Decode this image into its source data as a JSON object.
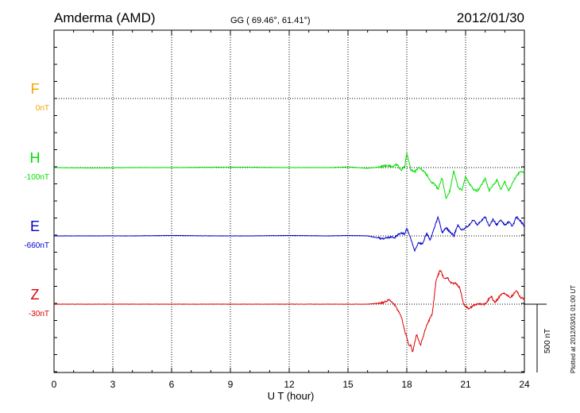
{
  "header": {
    "station": "Amderma (AMD)",
    "coords": "GG ( 69.46°,  61.41°)",
    "date": "2012/01/30"
  },
  "footer": {
    "xlabel": "U T (hour)",
    "plotted": "Plotted at 2012/03/01 01:00 UT",
    "scale": "500 nT"
  },
  "chart_data": {
    "type": "line",
    "xlabel": "U T (hour)",
    "xlim": [
      0,
      24
    ],
    "xticks": [
      "0",
      "3",
      "6",
      "9",
      "12",
      "15",
      "18",
      "21",
      "24"
    ],
    "grid": true,
    "scale_bar_nT": 500,
    "colors": {
      "F": "#f5a500",
      "H": "#00e000",
      "E": "#0000cc",
      "Z": "#dd0000"
    },
    "series": [
      {
        "name": "F",
        "baseline": "0nT",
        "x": [],
        "y": []
      },
      {
        "name": "H",
        "baseline": "-100nT",
        "x": [
          0,
          2,
          4,
          6,
          8,
          10,
          12,
          14,
          15,
          16,
          16.6,
          17,
          17.3,
          17.5,
          17.7,
          17.9,
          18.0,
          18.2,
          18.4,
          18.6,
          18.8,
          19.0,
          19.2,
          19.4,
          19.6,
          19.8,
          20.0,
          20.2,
          20.4,
          20.6,
          20.8,
          21.0,
          21.2,
          21.4,
          21.6,
          21.8,
          22.0,
          22.2,
          22.4,
          22.6,
          22.8,
          23.0,
          23.2,
          23.4,
          23.6,
          23.8,
          24
        ],
        "y": [
          0,
          -3,
          0,
          0,
          3,
          3,
          0,
          0,
          5,
          -5,
          5,
          15,
          5,
          25,
          -20,
          10,
          110,
          -15,
          -35,
          5,
          -20,
          -50,
          -100,
          -120,
          -160,
          -70,
          -230,
          -170,
          -20,
          -140,
          -170,
          -70,
          -120,
          -160,
          -170,
          -130,
          -80,
          -170,
          -130,
          -90,
          -160,
          -100,
          -170,
          -110,
          -60,
          -30,
          -30
        ]
      },
      {
        "name": "E",
        "baseline": "-660nT",
        "x": [
          0,
          2,
          4,
          6,
          8,
          10,
          12,
          14,
          15,
          16,
          16.5,
          16.8,
          17.1,
          17.4,
          17.7,
          17.9,
          18.0,
          18.2,
          18.4,
          18.6,
          18.8,
          19.0,
          19.2,
          19.4,
          19.6,
          19.8,
          20.0,
          20.2,
          20.4,
          20.6,
          20.8,
          21.0,
          21.2,
          21.4,
          21.6,
          21.8,
          22.0,
          22.2,
          22.4,
          22.6,
          22.8,
          23.0,
          23.2,
          23.4,
          23.6,
          23.8,
          24
        ],
        "y": [
          0,
          0,
          0,
          3,
          0,
          0,
          3,
          0,
          3,
          0,
          -15,
          -20,
          -10,
          -10,
          25,
          15,
          60,
          -20,
          -110,
          -50,
          -60,
          20,
          -30,
          60,
          140,
          20,
          60,
          30,
          0,
          80,
          40,
          60,
          80,
          120,
          80,
          110,
          140,
          70,
          120,
          80,
          120,
          80,
          100,
          70,
          140,
          110,
          70
        ]
      },
      {
        "name": "Z",
        "baseline": "-30nT",
        "x": [
          0,
          2,
          4,
          6,
          8,
          10,
          12,
          14,
          15,
          16,
          16.8,
          17.1,
          17.4,
          17.7,
          17.9,
          18.0,
          18.1,
          18.2,
          18.3,
          18.5,
          18.7,
          19.0,
          19.3,
          19.5,
          19.7,
          19.9,
          20.1,
          20.3,
          20.5,
          20.7,
          20.9,
          21.1,
          21.3,
          21.5,
          21.7,
          22.0,
          22.3,
          22.5,
          22.8,
          23.0,
          23.3,
          23.6,
          23.8,
          24
        ],
        "y": [
          0,
          0,
          0,
          0,
          0,
          0,
          0,
          0,
          0,
          0,
          10,
          35,
          -10,
          -80,
          -200,
          -240,
          -300,
          -300,
          -350,
          -220,
          -300,
          -160,
          -70,
          180,
          250,
          190,
          190,
          150,
          150,
          120,
          0,
          -30,
          -20,
          0,
          0,
          0,
          60,
          10,
          70,
          80,
          50,
          100,
          50,
          40
        ]
      }
    ]
  }
}
